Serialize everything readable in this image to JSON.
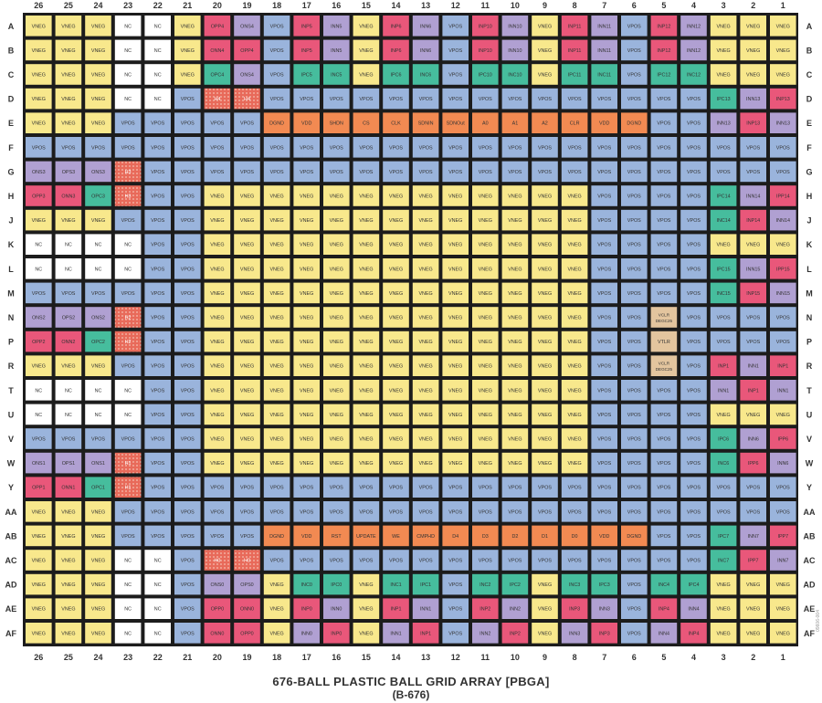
{
  "figure": {
    "title": "676-BALL PLASTIC BALL GRID ARRAY [PBGA]",
    "subtitle": "(B-676)",
    "figure_id": "09606-004"
  },
  "grid": {
    "columns": [
      "26",
      "25",
      "24",
      "23",
      "22",
      "21",
      "20",
      "19",
      "18",
      "17",
      "16",
      "15",
      "14",
      "13",
      "12",
      "11",
      "10",
      "9",
      "8",
      "7",
      "6",
      "5",
      "4",
      "3",
      "2",
      "1"
    ],
    "rows": [
      "A",
      "B",
      "C",
      "D",
      "E",
      "F",
      "G",
      "H",
      "J",
      "K",
      "L",
      "M",
      "N",
      "P",
      "R",
      "T",
      "U",
      "V",
      "W",
      "Y",
      "AA",
      "AB",
      "AC",
      "AD",
      "AE",
      "AF"
    ],
    "color_key": {
      "VNEG": "#f8e88c",
      "VPOS": "#9ab4dc",
      "NC": "#ffffff",
      "INPUT_A": "#b0a0d2",
      "INPUT_B": "#e9577a",
      "INPUT_C": "#46bd9d",
      "DIGITAL": "#f28a52",
      "SPECIAL": "#e3c59e",
      "HATCH": "#e86a5a"
    },
    "cells": {
      "A": [
        "VNEG",
        "VNEG",
        "VNEG",
        "NC",
        "NC",
        "VNEG",
        "OPP4",
        "ONS4",
        "VPOS",
        "INP5",
        "INN5",
        "VNEG",
        "INP6",
        "INN6",
        "VPOS",
        "INP10",
        "INN10",
        "VNEG",
        "INP11",
        "INN11",
        "VPOS",
        "INP12",
        "INN12",
        "VNEG",
        "VNEG",
        "VNEG"
      ],
      "B": [
        "VNEG",
        "VNEG",
        "VNEG",
        "NC",
        "NC",
        "VNEG",
        "ONN4",
        "OPP4",
        "VPOS",
        "INP5",
        "INN5",
        "VNEG",
        "INP6",
        "INN6",
        "VPOS",
        "INP10",
        "INN10",
        "VNEG",
        "INP11",
        "INN11",
        "VPOS",
        "INP12",
        "INN12",
        "VNEG",
        "VNEG",
        "VNEG"
      ],
      "C": [
        "VNEG",
        "VNEG",
        "VNEG",
        "NC",
        "NC",
        "VNEG",
        "OPC4",
        "ONS4",
        "VPOS",
        "IPC5",
        "INC5",
        "VNEG",
        "IPC6",
        "INC6",
        "VPOS",
        "IPC10",
        "INC10",
        "VNEG",
        "IPC11",
        "INC11",
        "VPOS",
        "IPC12",
        "INC12",
        "VNEG",
        "VNEG",
        "VNEG"
      ],
      "D": [
        "VNEG",
        "VNEG",
        "VNEG",
        "NC",
        "NC",
        "VPOS",
        "H4",
        "H4",
        "VPOS",
        "VPOS",
        "VPOS",
        "VPOS",
        "VPOS",
        "VPOS",
        "VPOS",
        "VPOS",
        "VPOS",
        "VPOS",
        "VPOS",
        "VPOS",
        "VPOS",
        "VPOS",
        "VPOS",
        "IPC13",
        "INN13",
        "INP13"
      ],
      "E": [
        "VNEG",
        "VNEG",
        "VNEG",
        "VPOS",
        "VPOS",
        "VPOS",
        "VPOS",
        "VPOS",
        "DGND",
        "VDD",
        "SHDN",
        "CS",
        "CLK",
        "SDNIN",
        "SDNOut",
        "A0",
        "A1",
        "A2",
        "CLR",
        "VDD",
        "DGND",
        "VPOS",
        "VPOS",
        "INN13",
        "INP13",
        "INN13"
      ],
      "F": [
        "VPOS",
        "VPOS",
        "VPOS",
        "VPOS",
        "VPOS",
        "VPOS",
        "VPOS",
        "VPOS",
        "VPOS",
        "VPOS",
        "VPOS",
        "VPOS",
        "VPOS",
        "VPOS",
        "VPOS",
        "VPOS",
        "VPOS",
        "VPOS",
        "VPOS",
        "VPOS",
        "VPOS",
        "VPOS",
        "VPOS",
        "VPOS",
        "VPOS",
        "VPOS"
      ],
      "G": [
        "ONS3",
        "OPS3",
        "ONS3",
        "H3",
        "VPOS",
        "VPOS",
        "VPOS",
        "VPOS",
        "VPOS",
        "VPOS",
        "VPOS",
        "VPOS",
        "VPOS",
        "VPOS",
        "VPOS",
        "VPOS",
        "VPOS",
        "VPOS",
        "VPOS",
        "VPOS",
        "VPOS",
        "VPOS",
        "VPOS",
        "VPOS",
        "VPOS",
        "VPOS"
      ],
      "H": [
        "OPP3",
        "ONN3",
        "OPC3",
        "H3",
        "VPOS",
        "VPOS",
        "VNEG",
        "VNEG",
        "VNEG",
        "VNEG",
        "VNEG",
        "VNEG",
        "VNEG",
        "VNEG",
        "VNEG",
        "VNEG",
        "VNEG",
        "VNEG",
        "VNEG",
        "VPOS",
        "VPOS",
        "VPOS",
        "VPOS",
        "IPC14",
        "INN14",
        "IPP14"
      ],
      "J": [
        "VNEG",
        "VNEG",
        "VNEG",
        "VPOS",
        "VPOS",
        "VPOS",
        "VNEG",
        "VNEG",
        "VNEG",
        "VNEG",
        "VNEG",
        "VNEG",
        "VNEG",
        "VNEG",
        "VNEG",
        "VNEG",
        "VNEG",
        "VNEG",
        "VNEG",
        "VPOS",
        "VPOS",
        "VPOS",
        "VPOS",
        "INC14",
        "INP14",
        "INN14"
      ],
      "K": [
        "NC",
        "NC",
        "NC",
        "NC",
        "VPOS",
        "VPOS",
        "VNEG",
        "VNEG",
        "VNEG",
        "VNEG",
        "VNEG",
        "VNEG",
        "VNEG",
        "VNEG",
        "VNEG",
        "VNEG",
        "VNEG",
        "VNEG",
        "VNEG",
        "VPOS",
        "VPOS",
        "VPOS",
        "VPOS",
        "VNEG",
        "VNEG",
        "VNEG"
      ],
      "L": [
        "NC",
        "NC",
        "NC",
        "NC",
        "VPOS",
        "VPOS",
        "VNEG",
        "VNEG",
        "VNEG",
        "VNEG",
        "VNEG",
        "VNEG",
        "VNEG",
        "VNEG",
        "VNEG",
        "VNEG",
        "VNEG",
        "VNEG",
        "VNEG",
        "VPOS",
        "VPOS",
        "VPOS",
        "VPOS",
        "IPC15",
        "INN15",
        "IPP15"
      ],
      "M": [
        "VPOS",
        "VPOS",
        "VPOS",
        "VPOS",
        "VPOS",
        "VPOS",
        "VNEG",
        "VNEG",
        "VNEG",
        "VNEG",
        "VNEG",
        "VNEG",
        "VNEG",
        "VNEG",
        "VNEG",
        "VNEG",
        "VNEG",
        "VNEG",
        "VNEG",
        "VPOS",
        "VPOS",
        "VPOS",
        "VPOS",
        "INC15",
        "INP15",
        "INN15"
      ],
      "N": [
        "ONS2",
        "OPS2",
        "ONS2",
        "H2",
        "VPOS",
        "VPOS",
        "VNEG",
        "VNEG",
        "VNEG",
        "VNEG",
        "VNEG",
        "VNEG",
        "VNEG",
        "VNEG",
        "VNEG",
        "VNEG",
        "VNEG",
        "VNEG",
        "VNEG",
        "VPOS",
        "VPOS",
        "VCLR DEGC25",
        "VPOS",
        "VPOS",
        "VPOS",
        "VPOS"
      ],
      "P": [
        "OPP2",
        "ONN2",
        "OPC2",
        "H2",
        "VPOS",
        "VPOS",
        "VNEG",
        "VNEG",
        "VNEG",
        "VNEG",
        "VNEG",
        "VNEG",
        "VNEG",
        "VNEG",
        "VNEG",
        "VNEG",
        "VNEG",
        "VNEG",
        "VNEG",
        "VPOS",
        "VPOS",
        "VTLR",
        "VPOS",
        "VPOS",
        "VPOS",
        "VPOS"
      ],
      "R": [
        "VNEG",
        "VNEG",
        "VNEG",
        "VPOS",
        "VPOS",
        "VPOS",
        "VNEG",
        "VNEG",
        "VNEG",
        "VNEG",
        "VNEG",
        "VNEG",
        "VNEG",
        "VNEG",
        "VNEG",
        "VNEG",
        "VNEG",
        "VNEG",
        "VNEG",
        "VPOS",
        "VPOS",
        "VCLR DEGC25",
        "VPOS",
        "INP1",
        "INN1",
        "INP1"
      ],
      "T": [
        "NC",
        "NC",
        "NC",
        "NC",
        "VPOS",
        "VPOS",
        "VNEG",
        "VNEG",
        "VNEG",
        "VNEG",
        "VNEG",
        "VNEG",
        "VNEG",
        "VNEG",
        "VNEG",
        "VNEG",
        "VNEG",
        "VNEG",
        "VNEG",
        "VPOS",
        "VPOS",
        "VPOS",
        "VPOS",
        "INN1",
        "INP1",
        "INN1"
      ],
      "U": [
        "NC",
        "NC",
        "NC",
        "NC",
        "VPOS",
        "VPOS",
        "VNEG",
        "VNEG",
        "VNEG",
        "VNEG",
        "VNEG",
        "VNEG",
        "VNEG",
        "VNEG",
        "VNEG",
        "VNEG",
        "VNEG",
        "VNEG",
        "VNEG",
        "VPOS",
        "VPOS",
        "VPOS",
        "VPOS",
        "VNEG",
        "VNEG",
        "VNEG"
      ],
      "V": [
        "VPOS",
        "VPOS",
        "VPOS",
        "VPOS",
        "VPOS",
        "VPOS",
        "VNEG",
        "VNEG",
        "VNEG",
        "VNEG",
        "VNEG",
        "VNEG",
        "VNEG",
        "VNEG",
        "VNEG",
        "VNEG",
        "VNEG",
        "VNEG",
        "VNEG",
        "VPOS",
        "VPOS",
        "VPOS",
        "VPOS",
        "IPC6",
        "INN6",
        "IPP6"
      ],
      "W": [
        "ONS1",
        "OPS1",
        "ONS1",
        "H1",
        "VPOS",
        "VPOS",
        "VNEG",
        "VNEG",
        "VNEG",
        "VNEG",
        "VNEG",
        "VNEG",
        "VNEG",
        "VNEG",
        "VNEG",
        "VNEG",
        "VNEG",
        "VNEG",
        "VNEG",
        "VPOS",
        "VPOS",
        "VPOS",
        "VPOS",
        "INC6",
        "IPP6",
        "INN6"
      ],
      "Y": [
        "OPP1",
        "ONN1",
        "OPC1",
        "H1",
        "VPOS",
        "VPOS",
        "VPOS",
        "VPOS",
        "VPOS",
        "VPOS",
        "VPOS",
        "VPOS",
        "VPOS",
        "VPOS",
        "VPOS",
        "VPOS",
        "VPOS",
        "VPOS",
        "VPOS",
        "VPOS",
        "VPOS",
        "VPOS",
        "VPOS",
        "VPOS",
        "VPOS",
        "VPOS"
      ],
      "AA": [
        "VNEG",
        "VNEG",
        "VNEG",
        "VPOS",
        "VPOS",
        "VPOS",
        "VPOS",
        "VPOS",
        "VPOS",
        "VPOS",
        "VPOS",
        "VPOS",
        "VPOS",
        "VPOS",
        "VPOS",
        "VPOS",
        "VPOS",
        "VPOS",
        "VPOS",
        "VPOS",
        "VPOS",
        "VPOS",
        "VPOS",
        "VPOS",
        "VPOS",
        "VPOS"
      ],
      "AB": [
        "VNEG",
        "VNEG",
        "VNEG",
        "VPOS",
        "VPOS",
        "VPOS",
        "VPOS",
        "VPOS",
        "DGND",
        "VDD",
        "RST",
        "UPDATE",
        "WE",
        "CMPHD",
        "D4",
        "D3",
        "D2",
        "D1",
        "D0",
        "VDD",
        "DGND",
        "VPOS",
        "VPOS",
        "IPC7",
        "INN7",
        "IPP7"
      ],
      "AC": [
        "VNEG",
        "VNEG",
        "VNEG",
        "NC",
        "NC",
        "VPOS",
        "H0",
        "H0",
        "VPOS",
        "VPOS",
        "VPOS",
        "VPOS",
        "VPOS",
        "VPOS",
        "VPOS",
        "VPOS",
        "VPOS",
        "VPOS",
        "VPOS",
        "VPOS",
        "VPOS",
        "VPOS",
        "VPOS",
        "INC7",
        "IPP7",
        "INN7"
      ],
      "AD": [
        "VNEG",
        "VNEG",
        "VNEG",
        "NC",
        "NC",
        "VPOS",
        "ONS0",
        "OPS0",
        "VNEG",
        "INC0",
        "IPC0",
        "VNEG",
        "INC1",
        "IPC1",
        "VPOS",
        "INC2",
        "IPC2",
        "VNEG",
        "INC3",
        "IPC3",
        "VPOS",
        "INC4",
        "IPC4",
        "VNEG",
        "VNEG",
        "VNEG"
      ],
      "AE": [
        "VNEG",
        "VNEG",
        "VNEG",
        "NC",
        "NC",
        "VPOS",
        "OPP0",
        "ONN0",
        "VNEG",
        "INP0",
        "INN0",
        "VNEG",
        "INP1",
        "INN1",
        "VPOS",
        "INP2",
        "INN2",
        "VNEG",
        "INP3",
        "INN3",
        "VPOS",
        "INP4",
        "INN4",
        "VNEG",
        "VNEG",
        "VNEG"
      ],
      "AF": [
        "VNEG",
        "VNEG",
        "VNEG",
        "NC",
        "NC",
        "VPOS",
        "ONN0",
        "OPP0",
        "VNEG",
        "INN0",
        "INP0",
        "VNEG",
        "INN1",
        "INP1",
        "VPOS",
        "INN2",
        "INP2",
        "VNEG",
        "INN3",
        "INP3",
        "VPOS",
        "INN4",
        "INP4",
        "VNEG",
        "VNEG",
        "VNEG"
      ]
    }
  }
}
